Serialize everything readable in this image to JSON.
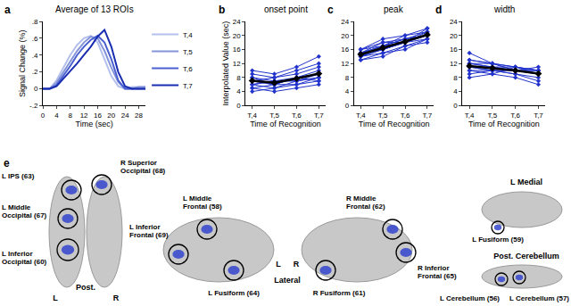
{
  "chart_data": [
    {
      "letter": "a",
      "type": "line",
      "title": "Average of 13 ROIs",
      "xlabel": "Time (sec)",
      "ylabel": "Signal Change (%)",
      "x": [
        0,
        2,
        4,
        6,
        8,
        10,
        12,
        14,
        16,
        18,
        20,
        22,
        24,
        26,
        28,
        30
      ],
      "series": [
        {
          "name": "T,4",
          "color": "#b4c0ec",
          "values": [
            0,
            0,
            0.1,
            0.25,
            0.4,
            0.52,
            0.6,
            0.63,
            0.55,
            0.35,
            0.15,
            0.03,
            0,
            0.02,
            0.02,
            0.02
          ]
        },
        {
          "name": "T,5",
          "color": "#8494d8",
          "values": [
            0,
            0,
            0.07,
            0.2,
            0.33,
            0.45,
            0.55,
            0.62,
            0.6,
            0.45,
            0.25,
            0.08,
            0,
            0,
            0.02,
            0.02
          ]
        },
        {
          "name": "T,6",
          "color": "#4a5fd0",
          "values": [
            0,
            0,
            0.04,
            0.15,
            0.27,
            0.4,
            0.5,
            0.58,
            0.63,
            0.55,
            0.35,
            0.1,
            0,
            0,
            0,
            0
          ]
        },
        {
          "name": "T,7",
          "color": "#1a2db0",
          "values": [
            0,
            0,
            0.03,
            0.12,
            0.2,
            0.3,
            0.4,
            0.5,
            0.62,
            0.7,
            0.5,
            0.2,
            0.03,
            0,
            0,
            0
          ]
        }
      ],
      "xlim": [
        0,
        30
      ],
      "xticks": [
        0,
        4,
        8,
        12,
        16,
        20,
        24,
        28
      ],
      "ylim": [
        -0.2,
        0.8
      ],
      "yticks": [
        {
          "value": -0.2,
          "label": "-.2"
        },
        0,
        {
          "value": 0.2,
          "label": ".2"
        },
        {
          "value": 0.4,
          "label": ".4"
        },
        {
          "value": 0.6,
          "label": ".6"
        },
        {
          "value": 0.8,
          "label": ".8"
        }
      ],
      "legend": "upper right",
      "grid": false
    },
    {
      "letter": "b",
      "type": "line",
      "title": "onset point",
      "marker": "diamond",
      "xlabel": "Time of Recognition",
      "ylabel": "Interpolated Value (sec)",
      "categories": [
        "T,4",
        "T,5",
        "T,6",
        "T,7"
      ],
      "series": [
        {
          "color": "#2233cc",
          "values": [
            4,
            5,
            6,
            7
          ]
        },
        {
          "color": "#2233cc",
          "values": [
            5,
            6,
            6,
            8
          ]
        },
        {
          "color": "#2233cc",
          "values": [
            6,
            5,
            7,
            9
          ]
        },
        {
          "color": "#2233cc",
          "values": [
            7,
            6,
            8,
            10
          ]
        },
        {
          "color": "#2233cc",
          "values": [
            8,
            7,
            7,
            8
          ]
        },
        {
          "color": "#2233cc",
          "values": [
            6,
            7,
            8,
            9
          ]
        },
        {
          "color": "#2233cc",
          "values": [
            7,
            8,
            9,
            11
          ]
        },
        {
          "color": "#2233cc",
          "values": [
            9,
            8,
            10,
            12
          ]
        },
        {
          "color": "#2233cc",
          "values": [
            10,
            9,
            11,
            14
          ]
        },
        {
          "color": "#2233cc",
          "values": [
            8,
            6,
            8,
            7
          ]
        },
        {
          "color": "#2233cc",
          "values": [
            5,
            4,
            5,
            6
          ]
        },
        {
          "color": "#2233cc",
          "values": [
            6,
            7,
            7,
            8
          ]
        },
        {
          "color": "#2233cc",
          "values": [
            7,
            6,
            8,
            9
          ]
        },
        {
          "color": "#000000",
          "values": [
            7.1,
            6.5,
            7.7,
            9.1
          ]
        }
      ],
      "ylim": [
        0,
        24
      ],
      "yticks": [
        0,
        4,
        8,
        12,
        16,
        20,
        24
      ],
      "grid": false
    },
    {
      "letter": "c",
      "type": "line",
      "title": "peak",
      "marker": "diamond",
      "xlabel": "Time of Recognition",
      "categories": [
        "T,4",
        "T,5",
        "T,6",
        "T,7"
      ],
      "series": [
        {
          "color": "#2233cc",
          "values": [
            14,
            16,
            18,
            20
          ]
        },
        {
          "color": "#2233cc",
          "values": [
            15,
            17,
            19,
            21
          ]
        },
        {
          "color": "#2233cc",
          "values": [
            16,
            18,
            18,
            22
          ]
        },
        {
          "color": "#2233cc",
          "values": [
            13,
            15,
            17,
            19
          ]
        },
        {
          "color": "#2233cc",
          "values": [
            14,
            17,
            19,
            20
          ]
        },
        {
          "color": "#2233cc",
          "values": [
            15,
            16,
            18,
            21
          ]
        },
        {
          "color": "#2233cc",
          "values": [
            16,
            17,
            20,
            22
          ]
        },
        {
          "color": "#2233cc",
          "values": [
            14,
            16,
            18,
            19
          ]
        },
        {
          "color": "#2233cc",
          "values": [
            15,
            18,
            19,
            20
          ]
        },
        {
          "color": "#2233cc",
          "values": [
            13,
            14,
            17,
            18
          ]
        },
        {
          "color": "#2233cc",
          "values": [
            14,
            15,
            16,
            19
          ]
        },
        {
          "color": "#2233cc",
          "values": [
            16,
            19,
            20,
            21
          ]
        },
        {
          "color": "#2233cc",
          "values": [
            15,
            17,
            18,
            20
          ]
        },
        {
          "color": "#000000",
          "values": [
            14.6,
            16.5,
            18.2,
            20.2
          ]
        }
      ],
      "ylim": [
        0,
        24
      ],
      "yticks": [
        0,
        4,
        8,
        12,
        16,
        20,
        24
      ],
      "grid": false
    },
    {
      "letter": "d",
      "type": "line",
      "title": "width",
      "marker": "diamond",
      "xlabel": "Time of Recognition",
      "categories": [
        "T,4",
        "T,5",
        "T,6",
        "T,7"
      ],
      "series": [
        {
          "color": "#2233cc",
          "values": [
            12,
            11,
            10,
            9
          ]
        },
        {
          "color": "#2233cc",
          "values": [
            11,
            10,
            10,
            10
          ]
        },
        {
          "color": "#2233cc",
          "values": [
            13,
            12,
            11,
            9
          ]
        },
        {
          "color": "#2233cc",
          "values": [
            10,
            10,
            9,
            8
          ]
        },
        {
          "color": "#2233cc",
          "values": [
            12,
            11,
            11,
            10
          ]
        },
        {
          "color": "#2233cc",
          "values": [
            15,
            12,
            10,
            9
          ]
        },
        {
          "color": "#2233cc",
          "values": [
            9,
            10,
            10,
            11
          ]
        },
        {
          "color": "#2233cc",
          "values": [
            11,
            10,
            9,
            7
          ]
        },
        {
          "color": "#2233cc",
          "values": [
            10,
            9,
            11,
            10
          ]
        },
        {
          "color": "#2233cc",
          "values": [
            12,
            12,
            10,
            9
          ]
        },
        {
          "color": "#2233cc",
          "values": [
            8,
            9,
            8,
            6
          ]
        },
        {
          "color": "#2233cc",
          "values": [
            11,
            11,
            10,
            10
          ]
        },
        {
          "color": "#2233cc",
          "values": [
            13,
            12,
            11,
            10
          ]
        },
        {
          "color": "#000000",
          "values": [
            11.3,
            10.7,
            10,
            9.1
          ]
        }
      ],
      "ylim": [
        0,
        24
      ],
      "yticks": [
        0,
        4,
        8,
        12,
        16,
        20,
        24
      ],
      "grid": false
    }
  ],
  "panel_e": {
    "letter": "e",
    "color": "#3344cc",
    "views": [
      {
        "title": "Post.",
        "sides": [
          "L",
          "R"
        ],
        "regions": [
          {
            "lines": [
              "L IPS (63)"
            ]
          },
          {
            "lines": [
              "L Middle",
              "Occipital (67)"
            ]
          },
          {
            "lines": [
              "L Inferior",
              "Occipital (60)"
            ]
          },
          {
            "lines": [
              "R Superior",
              "Occipital (68)"
            ]
          }
        ]
      },
      {
        "title": "Lateral",
        "sides": [
          "L",
          "R"
        ],
        "regions": [
          {
            "lines": [
              "L Middle",
              "Frontal (58)"
            ]
          },
          {
            "lines": [
              "L Inferior",
              "Frontal (69)"
            ]
          },
          {
            "lines": [
              "L Fusiform (64)"
            ]
          },
          {
            "lines": [
              "R Middle",
              "Frontal (62)"
            ]
          },
          {
            "lines": [
              "R Inferior",
              "Frontal (65)"
            ]
          },
          {
            "lines": [
              "R Fusiform (61)"
            ]
          }
        ]
      },
      {
        "title": "L Medial",
        "regions": [
          {
            "lines": [
              "L Fusiform (59)"
            ]
          }
        ]
      },
      {
        "title": "Post. Cerebellum",
        "regions": [
          {
            "lines": [
              "L Cerebellum (56)"
            ]
          },
          {
            "lines": [
              "L Cerebellum (57)"
            ]
          }
        ]
      }
    ]
  }
}
